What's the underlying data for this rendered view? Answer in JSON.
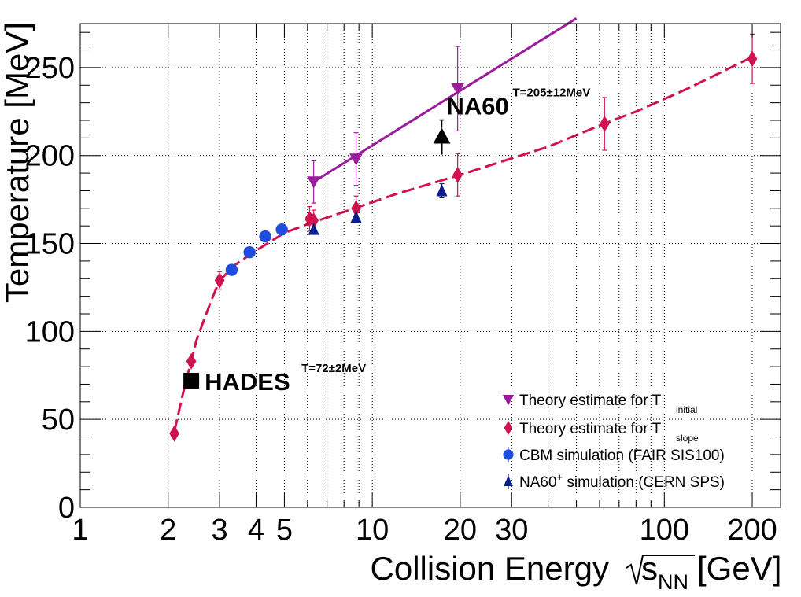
{
  "chart_data": {
    "type": "scatter",
    "xscale": "log",
    "xlim": [
      1,
      250
    ],
    "ylim": [
      0,
      275
    ],
    "grid": true,
    "legend_position": "bottom-right",
    "xlabel": "Collision Energy",
    "xlabel_sqrt": "s",
    "xlabel_sub": "NN",
    "xlabel_unit": "[GeV]",
    "ylabel": "Temperature [MeV]",
    "x_ticks": [
      1,
      2,
      3,
      4,
      5,
      10,
      20,
      30,
      100,
      200
    ],
    "x_tick_labels": [
      "1",
      "2",
      "3",
      "4",
      "5",
      "10",
      "20",
      "30",
      "100",
      "200"
    ],
    "y_ticks": [
      0,
      50,
      100,
      150,
      200,
      250
    ],
    "y_tick_labels": [
      "0",
      "50",
      "100",
      "150",
      "200",
      "250"
    ],
    "series": [
      {
        "name": "Theory estimate for T",
        "name_sub": "initial",
        "color": "#9b1d9b",
        "marker": "triangle-down",
        "points": [
          {
            "x": 6.3,
            "y": 185,
            "err": 12
          },
          {
            "x": 8.8,
            "y": 198,
            "err": 15
          },
          {
            "x": 19.6,
            "y": 238,
            "err": 24
          }
        ],
        "fit_line": [
          [
            6.3,
            185
          ],
          [
            50,
            278
          ]
        ]
      },
      {
        "name": "Theory estimate for T",
        "name_sub": "slope",
        "color": "#d0134f",
        "marker": "diamond",
        "points": [
          {
            "x": 2.1,
            "y": 42,
            "err": 0
          },
          {
            "x": 2.4,
            "y": 83,
            "err": 0
          },
          {
            "x": 3.0,
            "y": 129,
            "err": 5
          },
          {
            "x": 6.1,
            "y": 164,
            "err": 7
          },
          {
            "x": 6.3,
            "y": 163,
            "err": 6
          },
          {
            "x": 8.8,
            "y": 170,
            "err": 7
          },
          {
            "x": 19.6,
            "y": 189,
            "err": 12
          },
          {
            "x": 62.4,
            "y": 218,
            "err": 15
          },
          {
            "x": 200,
            "y": 255,
            "err": 14
          }
        ],
        "fit_line": [
          [
            2.1,
            43
          ],
          [
            2.25,
            65
          ],
          [
            2.5,
            95
          ],
          [
            2.8,
            117
          ],
          [
            3.0,
            129
          ],
          [
            3.4,
            138
          ],
          [
            4.0,
            146
          ],
          [
            5.0,
            156
          ],
          [
            6.0,
            161
          ],
          [
            8.0,
            168
          ],
          [
            12,
            178
          ],
          [
            20,
            189
          ],
          [
            40,
            205
          ],
          [
            62,
            218
          ],
          [
            80,
            225
          ],
          [
            120,
            238
          ],
          [
            200,
            256
          ]
        ]
      },
      {
        "name": "CBM simulation (FAIR SIS100)",
        "color": "#1f4de0",
        "marker": "circle",
        "points": [
          {
            "x": 3.3,
            "y": 135,
            "err": 0
          },
          {
            "x": 3.8,
            "y": 145,
            "err": 0
          },
          {
            "x": 4.3,
            "y": 154,
            "err": 0
          },
          {
            "x": 4.9,
            "y": 158,
            "err": 0
          }
        ]
      },
      {
        "name": "NA60",
        "name_sup": "+",
        "name_rest": " simulation (CERN SPS)",
        "color": "#0a1f8c",
        "marker": "triangle-up",
        "points": [
          {
            "x": 6.3,
            "y": 158,
            "err": 0
          },
          {
            "x": 8.8,
            "y": 165,
            "err": 0
          },
          {
            "x": 17.3,
            "y": 180,
            "err": 4
          }
        ]
      }
    ],
    "annotations": [
      {
        "label": "HADES",
        "superscript": "T=72±2MeV",
        "x": 2.4,
        "y": 72,
        "marker": "square"
      },
      {
        "label": "NA60",
        "superscript": "T=205±12MeV",
        "x": 17.3,
        "y": 205,
        "marker": "arrow-up"
      }
    ]
  }
}
